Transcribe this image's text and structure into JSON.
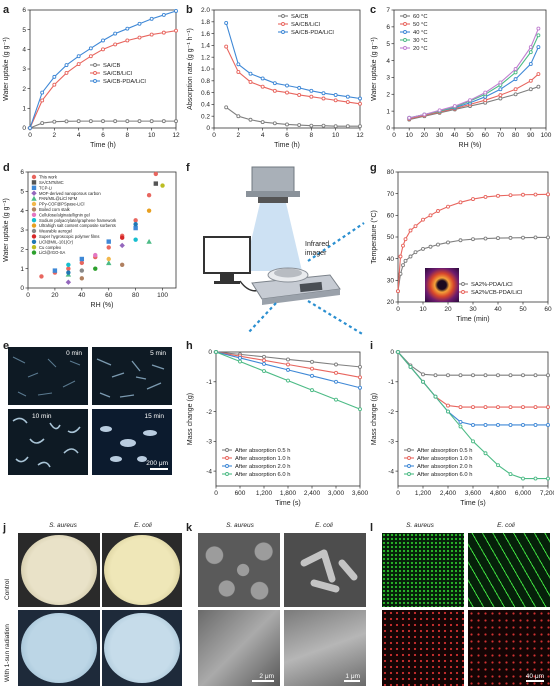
{
  "panel_labels": {
    "a": "a",
    "b": "b",
    "c": "c",
    "d": "d",
    "e": "e",
    "f": "f",
    "g": "g",
    "h": "h",
    "i": "i",
    "j": "j",
    "k": "k",
    "l": "l"
  },
  "colors": {
    "gray": "#7f7f7f",
    "red": "#e8665f",
    "blue": "#3f88d6",
    "green": "#4dbb86",
    "purple": "#c07fd0"
  },
  "chart_data": [
    {
      "id": "a",
      "type": "line",
      "xlabel": "Time (h)",
      "ylabel": "Water uptake (g g⁻¹)",
      "xlim": [
        0,
        12
      ],
      "ylim": [
        0,
        6
      ],
      "xticks": [
        0,
        2,
        4,
        6,
        8,
        10,
        12
      ],
      "yticks": [
        0,
        1,
        2,
        3,
        4,
        5,
        6
      ],
      "legend": "center-right",
      "x": [
        0,
        1,
        2,
        3,
        4,
        5,
        6,
        7,
        8,
        9,
        10,
        11,
        12
      ],
      "series": [
        {
          "name": "SA/CB",
          "color": "#7f7f7f",
          "values": [
            0,
            0.25,
            0.32,
            0.34,
            0.35,
            0.35,
            0.35,
            0.35,
            0.35,
            0.35,
            0.35,
            0.35,
            0.35
          ]
        },
        {
          "name": "SA/CB/LiCl",
          "color": "#e8665f",
          "values": [
            0,
            1.4,
            2.2,
            2.8,
            3.25,
            3.65,
            4.0,
            4.25,
            4.45,
            4.6,
            4.75,
            4.85,
            4.95
          ]
        },
        {
          "name": "SA/CB-PDA/LiCl",
          "color": "#3f88d6",
          "values": [
            0,
            1.8,
            2.6,
            3.2,
            3.65,
            4.05,
            4.45,
            4.8,
            5.05,
            5.3,
            5.55,
            5.75,
            5.95
          ]
        }
      ]
    },
    {
      "id": "b",
      "type": "line",
      "xlabel": "Time (h)",
      "ylabel": "Absorption rate (g g⁻¹ h⁻¹)",
      "xlim": [
        0,
        12
      ],
      "ylim": [
        0,
        2.0
      ],
      "xticks": [
        0,
        2,
        4,
        6,
        8,
        10,
        12
      ],
      "yticks": [
        0,
        0.2,
        0.4,
        0.6,
        0.8,
        1.0,
        1.2,
        1.4,
        1.6,
        1.8,
        2.0
      ],
      "ytick_labels": [
        "0",
        "0.2",
        "0.4",
        "0.6",
        "0.8",
        "1.0",
        "1.2",
        "1.4",
        "1.6",
        "1.8",
        "2.0"
      ],
      "legend": "top-right",
      "x": [
        1,
        2,
        3,
        4,
        5,
        6,
        7,
        8,
        9,
        10,
        11,
        12
      ],
      "series": [
        {
          "name": "SA/CB",
          "color": "#7f7f7f",
          "values": [
            0.35,
            0.2,
            0.14,
            0.1,
            0.08,
            0.06,
            0.05,
            0.04,
            0.04,
            0.03,
            0.03,
            0.03
          ]
        },
        {
          "name": "SA/CB/LiCl",
          "color": "#e8665f",
          "values": [
            1.38,
            0.95,
            0.78,
            0.7,
            0.63,
            0.6,
            0.56,
            0.53,
            0.5,
            0.47,
            0.44,
            0.41
          ]
        },
        {
          "name": "SA/CB-PDA/LiCl",
          "color": "#3f88d6",
          "values": [
            1.78,
            1.08,
            0.92,
            0.84,
            0.76,
            0.72,
            0.68,
            0.63,
            0.59,
            0.56,
            0.53,
            0.5
          ]
        }
      ]
    },
    {
      "id": "c",
      "type": "line",
      "xlabel": "RH (%)",
      "ylabel": "Water uptake (g g⁻¹)",
      "xlim": [
        0,
        100
      ],
      "ylim": [
        0,
        7
      ],
      "xticks": [
        0,
        10,
        20,
        30,
        40,
        50,
        60,
        70,
        80,
        90,
        100
      ],
      "yticks": [
        0,
        1,
        2,
        3,
        4,
        5,
        6,
        7
      ],
      "legend": "top-left",
      "x": [
        10,
        20,
        30,
        40,
        50,
        60,
        70,
        80,
        90,
        95
      ],
      "series": [
        {
          "name": "60 °C",
          "color": "#7f7f7f",
          "values": [
            0.5,
            0.7,
            0.9,
            1.1,
            1.3,
            1.5,
            1.75,
            2.0,
            2.3,
            2.45
          ]
        },
        {
          "name": "50 °C",
          "color": "#e8665f",
          "values": [
            0.55,
            0.75,
            0.95,
            1.15,
            1.4,
            1.65,
            1.95,
            2.3,
            2.8,
            3.2
          ]
        },
        {
          "name": "40 °C",
          "color": "#3f88d6",
          "values": [
            0.6,
            0.8,
            1.0,
            1.2,
            1.5,
            1.85,
            2.3,
            2.9,
            3.8,
            4.8
          ]
        },
        {
          "name": "30 °C",
          "color": "#4dbb86",
          "values": [
            0.6,
            0.8,
            1.0,
            1.25,
            1.6,
            2.0,
            2.55,
            3.3,
            4.5,
            5.5
          ]
        },
        {
          "name": "20 °C",
          "color": "#c07fd0",
          "values": [
            0.6,
            0.8,
            1.05,
            1.3,
            1.65,
            2.1,
            2.7,
            3.5,
            4.8,
            5.9
          ]
        }
      ]
    },
    {
      "id": "d",
      "type": "scatter",
      "xlabel": "RH (%)",
      "ylabel": "Water uptake (g g⁻¹)",
      "xlim": [
        0,
        110
      ],
      "ylim": [
        0,
        6
      ],
      "xticks": [
        0,
        20,
        40,
        60,
        80,
        100
      ],
      "yticks": [
        0,
        1,
        2,
        3,
        4,
        5,
        6
      ],
      "legend": "top-left",
      "series": [
        {
          "name": "This work",
          "color": "#e8665f",
          "shape": "circle",
          "points": [
            [
              10,
              0.6
            ],
            [
              20,
              0.8
            ],
            [
              30,
              1.0
            ],
            [
              40,
              1.3
            ],
            [
              50,
              1.6
            ],
            [
              60,
              2.1
            ],
            [
              70,
              2.7
            ],
            [
              80,
              3.5
            ],
            [
              90,
              4.8
            ],
            [
              95,
              5.9
            ]
          ]
        },
        {
          "name": "SA/CNTs/MC",
          "color": "#555555",
          "shape": "square",
          "points": [
            [
              95,
              5.4
            ]
          ]
        },
        {
          "name": "TCP-Li",
          "color": "#3f88d6",
          "shape": "square",
          "points": [
            [
              20,
              0.9
            ],
            [
              40,
              1.5
            ],
            [
              60,
              2.4
            ],
            [
              80,
              3.1
            ]
          ]
        },
        {
          "name": "MOF-derived nanoporous carbon",
          "color": "#9467bd",
          "shape": "diamond",
          "points": [
            [
              30,
              0.3
            ],
            [
              70,
              2.2
            ]
          ]
        },
        {
          "name": "PAN/MIL@LiCl NFM",
          "color": "#4dbb86",
          "shape": "triangle",
          "points": [
            [
              30,
              0.7
            ],
            [
              60,
              1.3
            ],
            [
              90,
              2.4
            ]
          ]
        },
        {
          "name": "PPy-COF@PSpase-LiCl",
          "color": "#f2b84b",
          "shape": "circle",
          "points": [
            [
              60,
              1.5
            ]
          ]
        },
        {
          "name": "Boiled corn stalk",
          "color": "#b08060",
          "shape": "circle",
          "points": [
            [
              40,
              0.5
            ],
            [
              70,
              1.2
            ]
          ]
        },
        {
          "name": "Cellulose/alginate/lignin gel",
          "color": "#e377c2",
          "shape": "circle",
          "points": [
            [
              50,
              1.7
            ]
          ]
        },
        {
          "name": "Sodium polyacrylate/graphene framework",
          "color": "#17becf",
          "shape": "circle",
          "points": [
            [
              30,
              1.2
            ],
            [
              80,
              2.5
            ]
          ]
        },
        {
          "name": "Ultrahigh salt content composite sorbents",
          "color": "#e8a020",
          "shape": "circle",
          "points": [
            [
              90,
              4.0
            ]
          ]
        },
        {
          "name": "Wearable aerogel",
          "color": "#888888",
          "shape": "circle",
          "points": [
            [
              40,
              0.9
            ]
          ]
        },
        {
          "name": "Super hygroscopic polymer films",
          "color": "#d62728",
          "shape": "circle",
          "points": [
            [
              70,
              2.6
            ]
          ]
        },
        {
          "name": "LiCl@MIL-101(Cr)",
          "color": "#1f77b4",
          "shape": "circle",
          "points": [
            [
              30,
              0.8
            ],
            [
              80,
              3.3
            ]
          ]
        },
        {
          "name": "Cu complex",
          "color": "#bcbd22",
          "shape": "circle",
          "points": [
            [
              100,
              5.3
            ]
          ]
        },
        {
          "name": "LiCl@rGO-SA",
          "color": "#2ca02c",
          "shape": "circle",
          "points": [
            [
              50,
              1.0
            ]
          ]
        }
      ]
    },
    {
      "id": "g",
      "type": "line",
      "xlabel": "Time (min)",
      "ylabel": "Temperature (°C)",
      "xlim": [
        0,
        60
      ],
      "ylim": [
        20,
        80
      ],
      "xticks": [
        0,
        10,
        20,
        30,
        40,
        50,
        60
      ],
      "yticks": [
        20,
        30,
        40,
        50,
        60,
        70,
        80
      ],
      "legend": "bottom-right",
      "x": [
        0,
        1,
        2,
        3,
        5,
        7,
        10,
        13,
        16,
        20,
        25,
        30,
        35,
        40,
        45,
        50,
        55,
        60
      ],
      "series": [
        {
          "name": "SA2%-PDA/LiCl",
          "color": "#7f7f7f",
          "values": [
            25,
            33,
            37,
            39,
            41,
            43,
            44.5,
            45.5,
            46.5,
            47.5,
            48.5,
            49,
            49.3,
            49.5,
            49.6,
            49.7,
            49.8,
            49.8
          ]
        },
        {
          "name": "SA2%/CB-PDA/LiCl",
          "color": "#e8665f",
          "values": [
            25,
            41,
            46,
            49,
            53,
            55,
            58,
            60,
            62,
            64,
            66,
            67.5,
            68.5,
            69,
            69.3,
            69.5,
            69.6,
            69.7
          ]
        }
      ]
    },
    {
      "id": "h",
      "type": "line",
      "xlabel": "Time (s)",
      "ylabel": "Mass change (g)",
      "xlim": [
        0,
        3600
      ],
      "ylim": [
        -4.5,
        0
      ],
      "xticks": [
        0,
        600,
        1200,
        1800,
        2400,
        3000,
        3600
      ],
      "xtick_labels": [
        "0",
        "600",
        "1,200",
        "1,800",
        "2,400",
        "3,000",
        "3,600"
      ],
      "yticks": [
        -4,
        -3,
        -2,
        -1,
        0
      ],
      "legend": "bottom-left",
      "x": [
        0,
        600,
        1200,
        1800,
        2400,
        3000,
        3600
      ],
      "series": [
        {
          "name": "After absorption 0.5 h",
          "color": "#7f7f7f",
          "values": [
            0,
            -0.08,
            -0.16,
            -0.25,
            -0.33,
            -0.42,
            -0.5
          ]
        },
        {
          "name": "After absorption 1.0 h",
          "color": "#e8665f",
          "values": [
            0,
            -0.14,
            -0.28,
            -0.42,
            -0.56,
            -0.7,
            -0.85
          ]
        },
        {
          "name": "After absorption 2.0 h",
          "color": "#3f88d6",
          "values": [
            0,
            -0.2,
            -0.4,
            -0.6,
            -0.8,
            -1.0,
            -1.2
          ]
        },
        {
          "name": "After absorption 6.0 h",
          "color": "#4dbb86",
          "values": [
            0,
            -0.32,
            -0.64,
            -0.96,
            -1.28,
            -1.6,
            -1.92
          ]
        }
      ]
    },
    {
      "id": "i",
      "type": "line",
      "xlabel": "Time (s)",
      "ylabel": "Mass change (g)",
      "xlim": [
        0,
        7200
      ],
      "ylim": [
        -4.5,
        0
      ],
      "xticks": [
        0,
        1200,
        2400,
        3600,
        4800,
        6000,
        7200
      ],
      "xtick_labels": [
        "0",
        "1,200",
        "2,400",
        "3,600",
        "4,800",
        "6,000",
        "7,200"
      ],
      "yticks": [
        -4,
        -3,
        -2,
        -1,
        0
      ],
      "legend": "bottom-left",
      "x": [
        0,
        600,
        1200,
        1800,
        2400,
        3000,
        3600,
        4200,
        4800,
        5400,
        6000,
        6600,
        7200
      ],
      "series": [
        {
          "name": "After absorption 0.5 h",
          "color": "#7f7f7f",
          "values": [
            0,
            -0.45,
            -0.75,
            -0.78,
            -0.78,
            -0.78,
            -0.78,
            -0.78,
            -0.78,
            -0.78,
            -0.78,
            -0.78,
            -0.78
          ]
        },
        {
          "name": "After absorption 1.0 h",
          "color": "#e8665f",
          "values": [
            0,
            -0.5,
            -1.0,
            -1.5,
            -1.8,
            -1.85,
            -1.85,
            -1.85,
            -1.85,
            -1.85,
            -1.85,
            -1.85,
            -1.85
          ]
        },
        {
          "name": "After absorption 2.0 h",
          "color": "#3f88d6",
          "values": [
            0,
            -0.5,
            -1.0,
            -1.5,
            -2.0,
            -2.35,
            -2.45,
            -2.45,
            -2.45,
            -2.45,
            -2.45,
            -2.45,
            -2.45
          ]
        },
        {
          "name": "After absorption 6.0 h",
          "color": "#4dbb86",
          "values": [
            0,
            -0.5,
            -1.0,
            -1.5,
            -2.0,
            -2.5,
            -3.0,
            -3.4,
            -3.8,
            -4.1,
            -4.25,
            -4.25,
            -4.25
          ]
        }
      ]
    }
  ],
  "e": {
    "t0": "0 min",
    "t5": "5 min",
    "t10": "10 min",
    "t15": "15 min",
    "scale": "200 μm"
  },
  "f": {
    "label": "Infrared imager"
  },
  "j": {
    "col1": "S. aureus",
    "col2": "E. coli",
    "row1": "Control",
    "row2": "With 1-sun radiation"
  },
  "k": {
    "col1": "S. aureus",
    "col2": "E. coli",
    "scale1": "2 μm",
    "scale2": "1 μm"
  },
  "l": {
    "col1": "S. aureus",
    "col2": "E. coli",
    "scale": "40 μm"
  }
}
